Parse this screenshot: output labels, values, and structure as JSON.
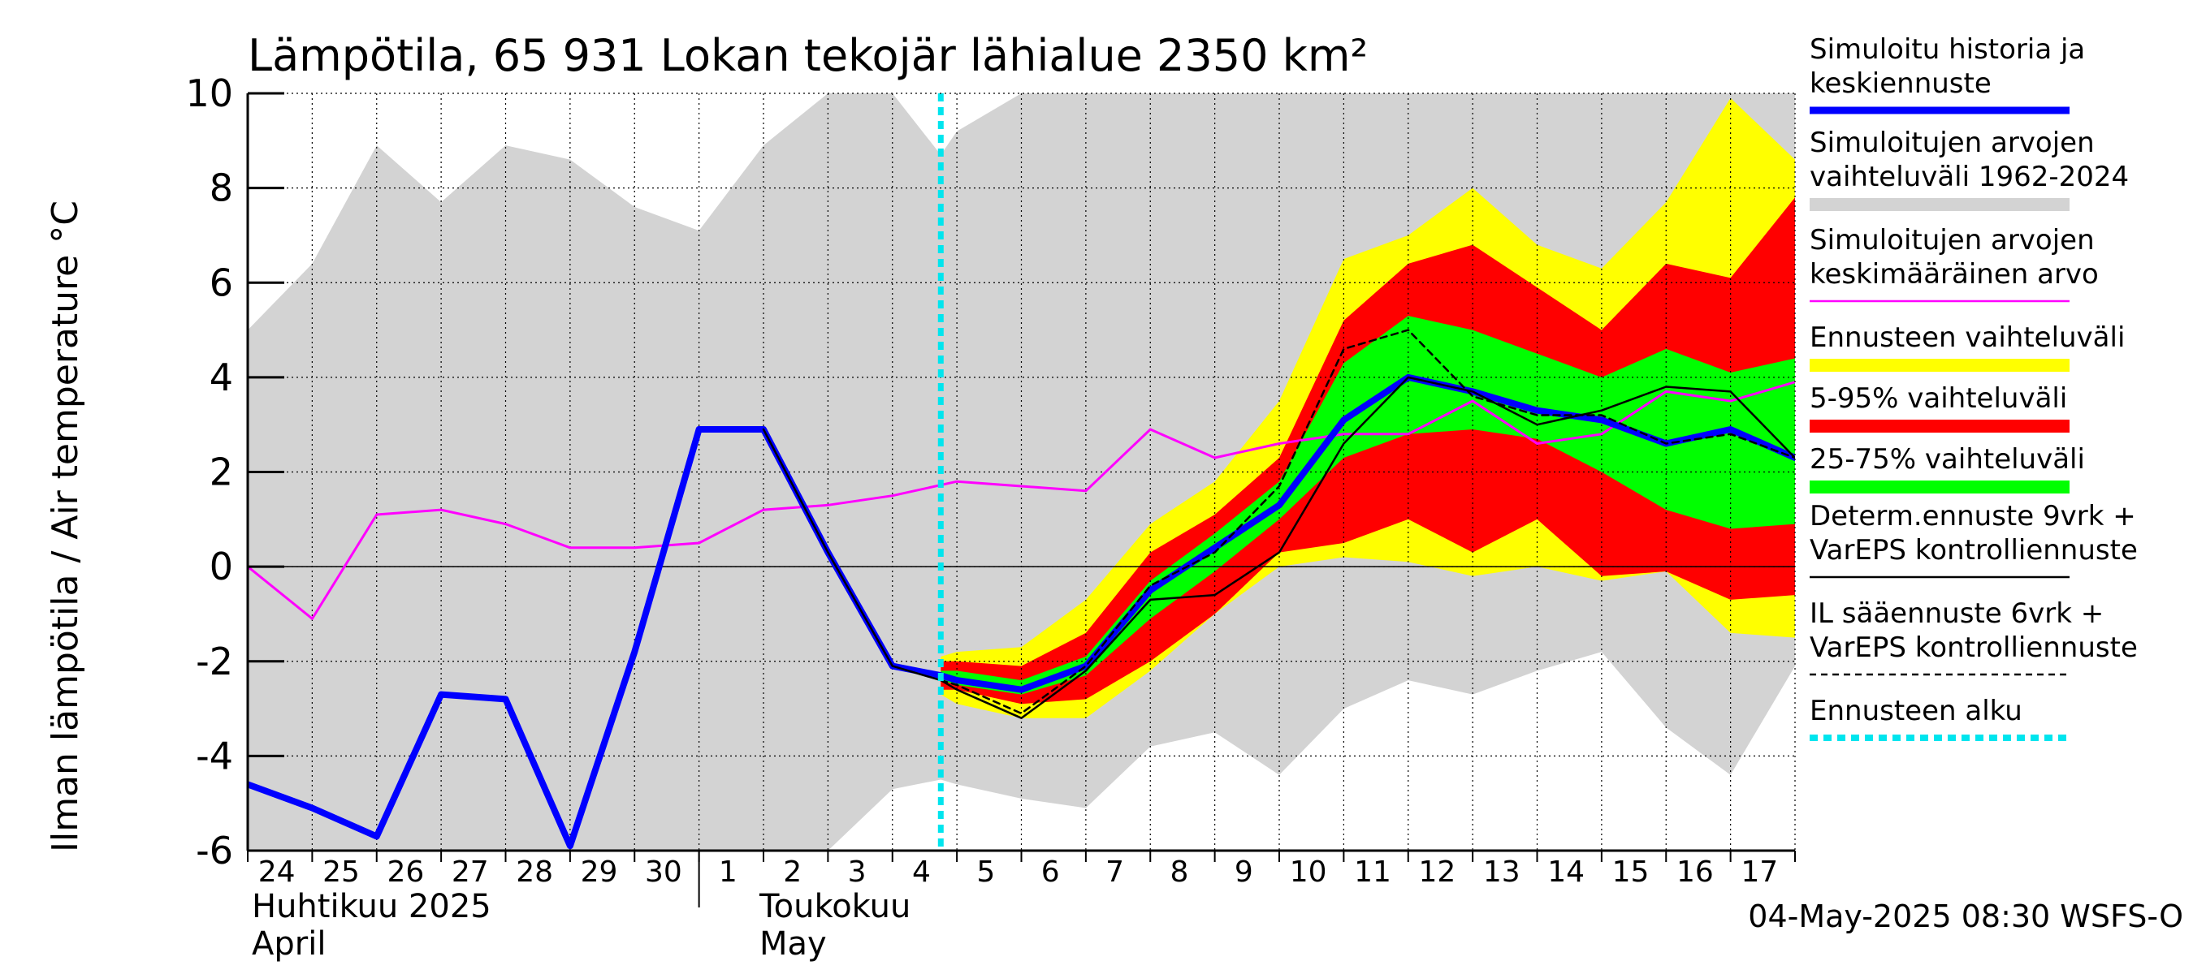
{
  "chart_data": {
    "type": "area",
    "title": "Lämpötila, 65 931 Lokan tekojär lähialue 2350 km²",
    "ylabel": "Ilman lämpötila / Air temperature   °C",
    "ylim": [
      -6,
      10
    ],
    "yticks": [
      -6,
      -4,
      -2,
      0,
      2,
      4,
      6,
      8,
      10
    ],
    "x_day_labels": [
      "24",
      "25",
      "26",
      "27",
      "28",
      "29",
      "30",
      "1",
      "2",
      "3",
      "4",
      "5",
      "6",
      "7",
      "8",
      "9",
      "10",
      "11",
      "12",
      "13",
      "14",
      "15",
      "16",
      "17"
    ],
    "month_labels": [
      {
        "fi": "Huhtikuu  2025",
        "en": "April"
      },
      {
        "fi": "Toukokuu",
        "en": "May"
      }
    ],
    "footer": "04-May-2025 08:30 WSFS-O",
    "grid": true,
    "legend_placement": "right",
    "legend": [
      {
        "label": "Simuloitu historia ja keskiennuste",
        "lines": [
          "Simuloitu historia ja",
          "keskiennuste"
        ],
        "color": "#0000ff",
        "style": "thick"
      },
      {
        "label": "Simuloitujen arvojen vaihteluväli 1962-2024",
        "lines": [
          "Simuloitujen arvojen",
          "vaihteluväli 1962-2024"
        ],
        "color": "#d3d3d3",
        "style": "band"
      },
      {
        "label": "Simuloitujen arvojen keskimääräinen arvo",
        "lines": [
          "Simuloitujen arvojen",
          "keskimääräinen arvo"
        ],
        "color": "#ff00ff",
        "style": "thin"
      },
      {
        "label": "Ennusteen vaihteluväli",
        "lines": [
          "Ennusteen vaihteluväli"
        ],
        "color": "#ffff00",
        "style": "band"
      },
      {
        "label": "5-95% vaihteluväli",
        "lines": [
          "5-95% vaihteluväli"
        ],
        "color": "#ff0000",
        "style": "band"
      },
      {
        "label": "25-75% vaihteluväli",
        "lines": [
          "25-75% vaihteluväli"
        ],
        "color": "#00ff00",
        "style": "band"
      },
      {
        "label": "Determ.ennuste 9vrk + VarEPS kontrolliennuste",
        "lines": [
          "Determ.ennuste 9vrk +",
          "VarEPS kontrolliennuste"
        ],
        "color": "#000000",
        "style": "thin"
      },
      {
        "label": "IL sääennuste 6vrk + VarEPS kontrolliennuste",
        "lines": [
          "IL sääennuste 6vrk  +",
          "  VarEPS kontrolliennuste"
        ],
        "color": "#000000",
        "style": "dashed"
      },
      {
        "label": "Ennusteen alku",
        "lines": [
          "Ennusteen alku"
        ],
        "color": "#00e5ee",
        "style": "dotted"
      }
    ],
    "forecast_start_x": 10.75,
    "series": [
      {
        "name": "Simuloitujen arvojen vaihteluväli 1962-2024",
        "kind": "band",
        "color": "#d3d3d3",
        "x": [
          0,
          1,
          2,
          3,
          4,
          5,
          6,
          7,
          8,
          9,
          10,
          10.75,
          11,
          12,
          13,
          14,
          15,
          16,
          17,
          18,
          19,
          20,
          21,
          22,
          23,
          24
        ],
        "low": [
          -6,
          -6,
          -6,
          -6,
          -6,
          -6,
          -6,
          -6,
          -6,
          -6,
          -4.7,
          -4.5,
          -4.6,
          -4.9,
          -5.1,
          -3.8,
          -3.5,
          -4.4,
          -3.0,
          -2.4,
          -2.7,
          -2.2,
          -1.8,
          -3.4,
          -4.4,
          -2.1
        ],
        "high": [
          5.0,
          6.4,
          8.9,
          7.7,
          8.9,
          8.6,
          7.6,
          7.1,
          8.9,
          10,
          10,
          8.7,
          9.2,
          10,
          10,
          10,
          10,
          10,
          10,
          10,
          10,
          10,
          10,
          10,
          10,
          10
        ]
      },
      {
        "name": "Ennusteen vaihteluväli",
        "kind": "band",
        "color": "#ffff00",
        "x": [
          10.75,
          11,
          12,
          13,
          14,
          15,
          16,
          17,
          18,
          19,
          20,
          21,
          22,
          23,
          24
        ],
        "low": [
          -2.7,
          -2.9,
          -3.2,
          -3.2,
          -2.2,
          -1.0,
          0.0,
          0.2,
          0.1,
          -0.2,
          0.0,
          -0.3,
          -0.1,
          -1.4,
          -1.5
        ],
        "high": [
          -1.9,
          -1.8,
          -1.7,
          -0.7,
          0.9,
          1.8,
          3.5,
          6.5,
          7.0,
          8.0,
          6.8,
          6.3,
          7.7,
          9.9,
          8.6
        ]
      },
      {
        "name": "5-95% vaihteluväli",
        "kind": "band",
        "color": "#ff0000",
        "x": [
          10.75,
          11,
          12,
          13,
          14,
          15,
          16,
          17,
          18,
          19,
          20,
          21,
          22,
          23,
          24
        ],
        "low": [
          -2.6,
          -2.6,
          -2.9,
          -2.8,
          -2.0,
          -1.0,
          0.3,
          0.5,
          1.0,
          0.3,
          1.0,
          -0.2,
          -0.1,
          -0.7,
          -0.6
        ],
        "high": [
          -2.0,
          -2.0,
          -2.1,
          -1.4,
          0.3,
          1.1,
          2.3,
          5.2,
          6.4,
          6.8,
          5.9,
          5.0,
          6.4,
          6.1,
          7.8
        ]
      },
      {
        "name": "25-75% vaihteluväli",
        "kind": "band",
        "color": "#00ff00",
        "x": [
          10.75,
          11,
          12,
          13,
          14,
          15,
          16,
          17,
          18,
          19,
          20,
          21,
          22,
          23,
          24
        ],
        "low": [
          -2.4,
          -2.5,
          -2.7,
          -2.3,
          -1.1,
          -0.1,
          1.0,
          2.3,
          2.8,
          2.9,
          2.7,
          2.0,
          1.2,
          0.8,
          0.9
        ],
        "high": [
          -2.2,
          -2.2,
          -2.4,
          -1.9,
          -0.3,
          0.7,
          1.8,
          4.3,
          5.3,
          5.0,
          4.5,
          4.0,
          4.6,
          4.1,
          4.4
        ]
      },
      {
        "name": "Simuloitujen arvojen keskimääräinen arvo",
        "kind": "line",
        "color": "#ff00ff",
        "width": 3,
        "x": [
          0,
          1,
          2,
          3,
          4,
          5,
          6,
          7,
          8,
          9,
          10,
          11,
          12,
          13,
          14,
          15,
          16,
          17,
          18,
          19,
          20,
          21,
          22,
          23,
          24
        ],
        "y": [
          0.0,
          -1.1,
          1.1,
          1.2,
          0.9,
          0.4,
          0.4,
          0.5,
          1.2,
          1.3,
          1.5,
          1.8,
          1.7,
          1.6,
          2.9,
          2.3,
          2.6,
          2.8,
          2.8,
          3.5,
          2.6,
          2.8,
          3.7,
          3.5,
          3.9
        ]
      },
      {
        "name": "Simuloitu historia ja keskiennuste",
        "kind": "line",
        "color": "#0000ff",
        "width": 8,
        "x": [
          0,
          1,
          2,
          3,
          4,
          5,
          6,
          7,
          8,
          9,
          10,
          10.75,
          11,
          12,
          13,
          14,
          15,
          16,
          17,
          18,
          19,
          20,
          21,
          22,
          23,
          24
        ],
        "y": [
          -4.6,
          -5.1,
          -5.7,
          -2.7,
          -2.8,
          -5.9,
          -1.8,
          2.9,
          2.9,
          0.3,
          -2.1,
          -2.3,
          -2.4,
          -2.6,
          -2.1,
          -0.5,
          0.4,
          1.3,
          3.1,
          4.0,
          3.7,
          3.3,
          3.1,
          2.6,
          2.9,
          2.3
        ]
      },
      {
        "name": "Determ.ennuste 9vrk + VarEPS kontrolliennuste",
        "kind": "line",
        "color": "#000000",
        "width": 2.5,
        "x": [
          8,
          9,
          10,
          10.75,
          11,
          12,
          13,
          14,
          15,
          16,
          17,
          18,
          19,
          20,
          21,
          22,
          23,
          24
        ],
        "y": [
          2.9,
          0.3,
          -2.1,
          -2.4,
          -2.6,
          -3.2,
          -2.2,
          -0.7,
          -0.6,
          0.3,
          2.6,
          4.0,
          3.7,
          3.0,
          3.3,
          3.8,
          3.7,
          2.3
        ]
      },
      {
        "name": "IL sääennuste 6vrk + VarEPS kontrolliennuste",
        "kind": "line",
        "color": "#000000",
        "width": 2.5,
        "dash": "8,6",
        "x": [
          10.75,
          11,
          12,
          13,
          14,
          15,
          16,
          17,
          18,
          19,
          20,
          21,
          22,
          23,
          24
        ],
        "y": [
          -2.4,
          -2.5,
          -3.1,
          -2.1,
          -0.4,
          0.3,
          1.7,
          4.6,
          5.0,
          3.6,
          3.2,
          3.2,
          2.6,
          2.8,
          2.3
        ]
      }
    ]
  }
}
